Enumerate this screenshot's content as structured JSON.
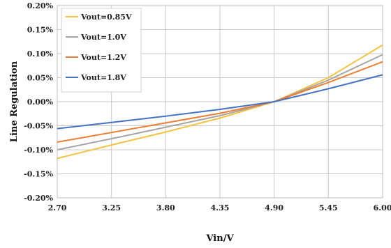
{
  "chart_data": {
    "type": "line",
    "title": "",
    "xlabel": "Vin/V",
    "ylabel": "Line Regulation",
    "x": [
      2.7,
      3.25,
      3.8,
      4.35,
      4.9,
      5.45,
      6.0
    ],
    "x_tick_labels": [
      "2.70",
      "3.25",
      "3.80",
      "4.35",
      "4.90",
      "5.45",
      "6.00"
    ],
    "xlim": [
      2.7,
      6.0
    ],
    "ylim": [
      -0.2,
      0.2
    ],
    "y_ticks": [
      -0.2,
      -0.15,
      -0.1,
      -0.05,
      0.0,
      0.05,
      0.1,
      0.15,
      0.2
    ],
    "y_tick_labels": [
      "-0.20%",
      "-0.15%",
      "-0.10%",
      "-0.05%",
      "0.00%",
      "0.05%",
      "0.10%",
      "0.15%",
      "0.20%"
    ],
    "grid": true,
    "legend_position": "top-left",
    "series": [
      {
        "name": "Vout=0.85V",
        "color": "#F5C342",
        "values": [
          -0.118,
          -0.09,
          -0.063,
          -0.034,
          0.0,
          0.05,
          0.118
        ]
      },
      {
        "name": "Vout=1.0V",
        "color": "#A5A5A5",
        "values": [
          -0.1,
          -0.077,
          -0.053,
          -0.029,
          0.0,
          0.045,
          0.098
        ]
      },
      {
        "name": "Vout=1.2V",
        "color": "#ED7D31",
        "values": [
          -0.084,
          -0.064,
          -0.044,
          -0.024,
          0.0,
          0.04,
          0.083
        ]
      },
      {
        "name": "Vout=1.8V",
        "color": "#4472C4",
        "values": [
          -0.056,
          -0.043,
          -0.03,
          -0.016,
          0.0,
          0.027,
          0.056
        ]
      }
    ]
  }
}
